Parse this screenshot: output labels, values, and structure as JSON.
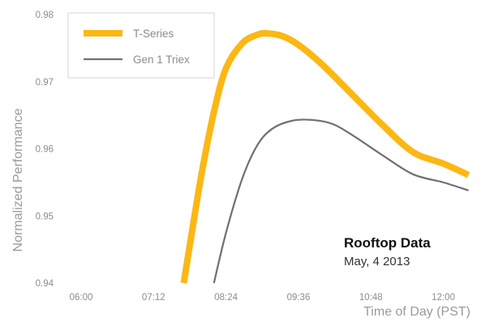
{
  "chart_data": {
    "type": "line",
    "xlabel": "Time of Day (PST)",
    "ylabel": "Normalized Performance",
    "x_ticks": [
      "06:00",
      "07:12",
      "08:24",
      "09:36",
      "10:48",
      "12:00"
    ],
    "y_ticks": [
      "0.94",
      "0.95",
      "0.96",
      "0.97",
      "0.98"
    ],
    "xlim": [
      "05:35",
      "12:35"
    ],
    "ylim": [
      0.94,
      0.98
    ],
    "grid": false,
    "legend_position": "top-left",
    "series": [
      {
        "name": "T-Series",
        "color": "#fbb714",
        "line_weight": "thick",
        "points": [
          {
            "x": "07:42",
            "y": 0.94
          },
          {
            "x": "07:50",
            "y": 0.9475
          },
          {
            "x": "08:00",
            "y": 0.9565
          },
          {
            "x": "08:12",
            "y": 0.9655
          },
          {
            "x": "08:24",
            "y": 0.972
          },
          {
            "x": "08:40",
            "y": 0.9757
          },
          {
            "x": "08:55",
            "y": 0.977
          },
          {
            "x": "09:05",
            "y": 0.9772
          },
          {
            "x": "09:20",
            "y": 0.9768
          },
          {
            "x": "09:36",
            "y": 0.9755
          },
          {
            "x": "10:00",
            "y": 0.9725
          },
          {
            "x": "10:30",
            "y": 0.968
          },
          {
            "x": "11:00",
            "y": 0.9635
          },
          {
            "x": "11:30",
            "y": 0.9595
          },
          {
            "x": "12:00",
            "y": 0.9578
          },
          {
            "x": "12:25",
            "y": 0.9561
          }
        ]
      },
      {
        "name": "Gen 1 Triex",
        "color": "#707070",
        "line_weight": "thin",
        "points": [
          {
            "x": "08:12",
            "y": 0.94
          },
          {
            "x": "08:24",
            "y": 0.9475
          },
          {
            "x": "08:40",
            "y": 0.9555
          },
          {
            "x": "08:55",
            "y": 0.9605
          },
          {
            "x": "09:10",
            "y": 0.963
          },
          {
            "x": "09:30",
            "y": 0.9642
          },
          {
            "x": "09:50",
            "y": 0.9643
          },
          {
            "x": "10:10",
            "y": 0.9637
          },
          {
            "x": "10:30",
            "y": 0.962
          },
          {
            "x": "11:00",
            "y": 0.959
          },
          {
            "x": "11:30",
            "y": 0.9562
          },
          {
            "x": "12:00",
            "y": 0.955
          },
          {
            "x": "12:25",
            "y": 0.9538
          }
        ]
      }
    ],
    "annotation": {
      "title": "Rooftop Data",
      "subtitle": "May, 4 2013"
    }
  }
}
